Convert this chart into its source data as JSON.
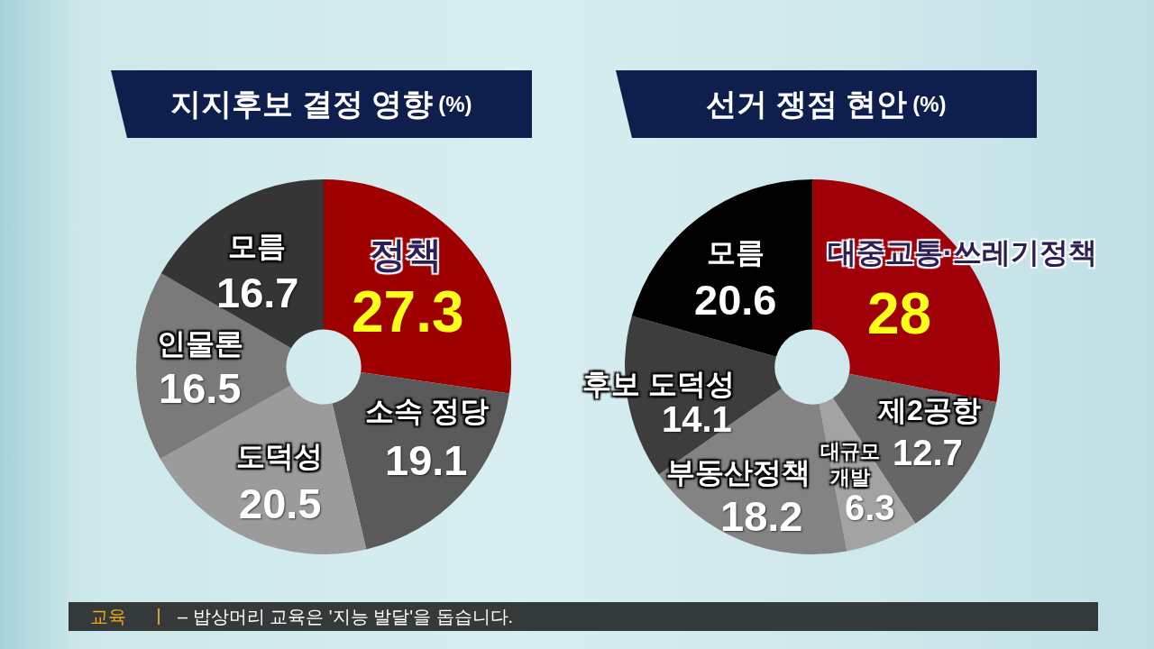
{
  "chart_data": [
    {
      "type": "donut",
      "title": "지지후보 결정 영향(%)",
      "categories": [
        "정책",
        "소속 정당",
        "도덕성",
        "인물론",
        "모름"
      ],
      "values": [
        27.3,
        19.1,
        20.5,
        16.5,
        16.7
      ],
      "colors": [
        "#9e0000",
        "#5a5a5a",
        "#9b9b9b",
        "#7a7a7a",
        "#353535"
      ],
      "data_labels": true,
      "annotations": [
        "교육",
        "– 밥상머리 교육은 '지능 발달'을 돕습니다."
      ]
    },
    {
      "type": "donut",
      "title": "선거 쟁점 현안(%)",
      "categories": [
        "대중교통·쓰레기정책",
        "제2공항",
        "대규모 개발",
        "부동산정책",
        "후보 도덕성",
        "모름"
      ],
      "values": [
        28,
        12.7,
        6.3,
        18.2,
        14.1,
        20.6
      ],
      "colors": [
        "#a00008",
        "#666666",
        "#a3a3a3",
        "#838383",
        "#3d3d3d",
        "#000000"
      ],
      "data_labels": true
    }
  ]
}
